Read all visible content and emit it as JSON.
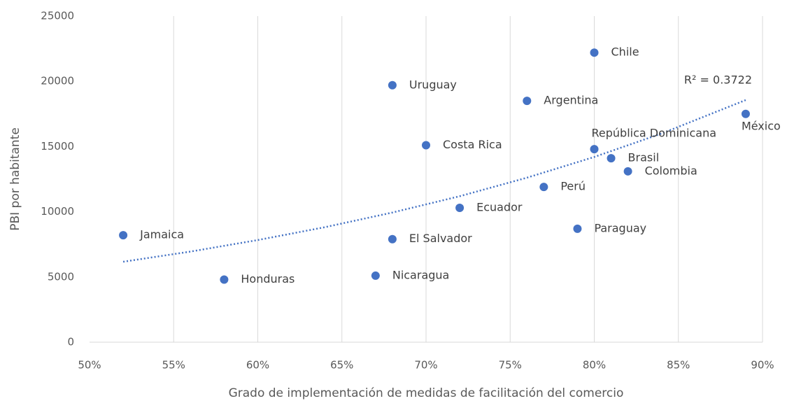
{
  "chart_data": {
    "type": "scatter",
    "x_label": "Grado de implementación de medidas de facilitación del comercio",
    "y_label": "PBI por habitante",
    "xlim": [
      50,
      90
    ],
    "xticks": [
      {
        "value": 50,
        "label": "50%"
      },
      {
        "value": 55,
        "label": "55%"
      },
      {
        "value": 60,
        "label": "60%"
      },
      {
        "value": 65,
        "label": "65%"
      },
      {
        "value": 70,
        "label": "70%"
      },
      {
        "value": 75,
        "label": "75%"
      },
      {
        "value": 80,
        "label": "80%"
      },
      {
        "value": 85,
        "label": "85%"
      },
      {
        "value": 90,
        "label": "90%"
      }
    ],
    "ylim": [
      0,
      25000
    ],
    "yticks": [
      0,
      5000,
      10000,
      15000,
      20000,
      25000
    ],
    "grid": "x",
    "series": [
      {
        "color": "#4472c4",
        "labels": [
          "Jamaica",
          "Honduras",
          "Nicaragua",
          "El Salvador",
          "Uruguay",
          "Costa Rica",
          "Ecuador",
          "Argentina",
          "Perú",
          "Paraguay",
          "Chile",
          "República Dominicana",
          "Brasil",
          "Colombia",
          "México"
        ],
        "x": [
          52,
          58,
          67,
          68,
          68,
          70,
          72,
          76,
          77,
          79,
          80,
          80,
          81,
          82,
          89
        ],
        "values": [
          8200,
          4800,
          5100,
          7900,
          19700,
          15100,
          10300,
          18500,
          11900,
          8700,
          22200,
          14800,
          14100,
          13100,
          17500
        ]
      }
    ],
    "trendline": {
      "label": "R² = 0.3722",
      "color": "#4472c4",
      "x": [
        52,
        56,
        60,
        64,
        68,
        72,
        76,
        80,
        84,
        89
      ],
      "values": [
        6170,
        6950,
        7830,
        8820,
        9940,
        11190,
        12610,
        14200,
        16000,
        18560
      ]
    }
  }
}
